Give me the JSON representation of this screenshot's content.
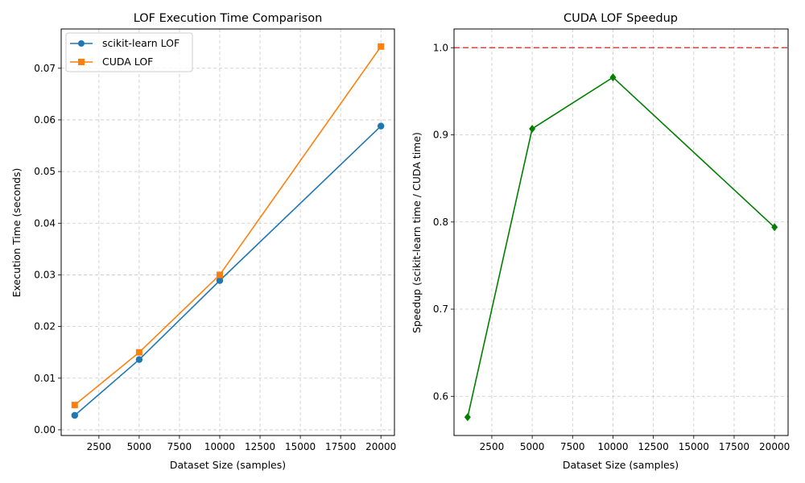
{
  "chart_data": [
    {
      "type": "line",
      "title": "LOF Execution Time Comparison",
      "xlabel": "Dataset Size (samples)",
      "ylabel": "Execution Time (seconds)",
      "x": [
        1000,
        5000,
        10000,
        20000
      ],
      "xlim": [
        160,
        20840
      ],
      "ylim": [
        -0.0011,
        0.0776
      ],
      "xticks": [
        2500,
        5000,
        7500,
        10000,
        12500,
        15000,
        17500,
        20000
      ],
      "xtick_labels": [
        "2500",
        "5000",
        "7500",
        "10000",
        "12500",
        "15000",
        "17500",
        "20000"
      ],
      "yticks": [
        0.0,
        0.01,
        0.02,
        0.03,
        0.04,
        0.05,
        0.06,
        0.07
      ],
      "ytick_labels": [
        "0.00",
        "0.01",
        "0.02",
        "0.03",
        "0.04",
        "0.05",
        "0.06",
        "0.07"
      ],
      "grid": true,
      "legend_position": "top-left",
      "series": [
        {
          "name": "scikit-learn LOF",
          "values": [
            0.0028,
            0.0136,
            0.0289,
            0.0588
          ],
          "color": "#1f77b4",
          "marker": "circle"
        },
        {
          "name": "CUDA LOF",
          "values": [
            0.0048,
            0.015,
            0.03,
            0.0742
          ],
          "color": "#ff7f0e",
          "marker": "square"
        }
      ]
    },
    {
      "type": "line",
      "title": "CUDA LOF Speedup",
      "xlabel": "Dataset Size (samples)",
      "ylabel": "Speedup (scikit-learn time / CUDA time)",
      "x": [
        1000,
        5000,
        10000,
        20000
      ],
      "xlim": [
        160,
        20840
      ],
      "ylim": [
        0.555,
        1.0215
      ],
      "xticks": [
        2500,
        5000,
        7500,
        10000,
        12500,
        15000,
        17500,
        20000
      ],
      "xtick_labels": [
        "2500",
        "5000",
        "7500",
        "10000",
        "12500",
        "15000",
        "17500",
        "20000"
      ],
      "yticks": [
        0.6,
        0.7,
        0.8,
        0.9,
        1.0
      ],
      "ytick_labels": [
        "0.6",
        "0.7",
        "0.8",
        "0.9",
        "1.0"
      ],
      "grid": true,
      "reference_line": {
        "y": 1.0,
        "color": "#d62728",
        "style": "dashed"
      },
      "series": [
        {
          "values": [
            0.576,
            0.907,
            0.966,
            0.794
          ],
          "color": "#008000",
          "marker": "diamond"
        }
      ]
    }
  ]
}
